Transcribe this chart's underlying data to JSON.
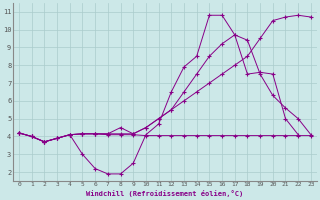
{
  "xlabel": "Windchill (Refroidissement éolien,°C)",
  "bg_color": "#cce8e8",
  "grid_color": "#aacccc",
  "line_color": "#880088",
  "xlim": [
    -0.5,
    23.5
  ],
  "ylim": [
    1.5,
    11.5
  ],
  "xticks": [
    0,
    1,
    2,
    3,
    4,
    5,
    6,
    7,
    8,
    9,
    10,
    11,
    12,
    13,
    14,
    15,
    16,
    17,
    18,
    19,
    20,
    21,
    22,
    23
  ],
  "yticks": [
    2,
    3,
    4,
    5,
    6,
    7,
    8,
    9,
    10,
    11
  ],
  "line1_x": [
    0,
    1,
    2,
    3,
    4,
    5,
    6,
    7,
    8,
    9,
    10,
    11,
    12,
    13,
    14,
    15,
    16,
    17,
    18,
    19,
    20,
    21,
    22,
    23
  ],
  "line1_y": [
    4.2,
    4.0,
    3.7,
    3.9,
    4.1,
    4.15,
    4.15,
    4.1,
    4.1,
    4.1,
    4.05,
    4.05,
    4.05,
    4.05,
    4.05,
    4.05,
    4.05,
    4.05,
    4.05,
    4.05,
    4.05,
    4.05,
    4.05,
    4.05
  ],
  "line2_x": [
    0,
    1,
    2,
    3,
    4,
    5,
    6,
    7,
    8,
    9,
    10,
    11,
    12,
    13,
    14,
    15,
    16,
    17,
    18,
    19,
    20,
    21,
    22,
    23
  ],
  "line2_y": [
    4.2,
    4.0,
    3.7,
    3.9,
    4.1,
    3.0,
    2.2,
    1.9,
    1.9,
    2.5,
    4.1,
    4.7,
    6.5,
    7.9,
    8.5,
    10.8,
    10.8,
    9.7,
    9.4,
    7.5,
    6.3,
    5.6,
    5.0,
    4.1
  ],
  "line3_x": [
    0,
    1,
    2,
    3,
    4,
    5,
    6,
    7,
    8,
    9,
    10,
    11,
    12,
    13,
    14,
    15,
    16,
    17,
    18,
    19,
    20,
    21,
    22,
    23
  ],
  "line3_y": [
    4.2,
    4.0,
    3.7,
    3.9,
    4.1,
    4.15,
    4.15,
    4.15,
    4.15,
    4.15,
    4.5,
    5.0,
    5.5,
    6.0,
    6.5,
    7.0,
    7.5,
    8.0,
    8.5,
    9.5,
    10.5,
    10.7,
    10.8,
    10.7
  ],
  "line4_x": [
    0,
    1,
    2,
    3,
    4,
    5,
    6,
    7,
    8,
    9,
    10,
    11,
    12,
    13,
    14,
    15,
    16,
    17,
    18,
    19,
    20,
    21,
    22
  ],
  "line4_y": [
    4.2,
    4.0,
    3.7,
    3.9,
    4.1,
    4.15,
    4.15,
    4.15,
    4.5,
    4.15,
    4.5,
    5.0,
    5.5,
    6.5,
    7.5,
    8.5,
    9.2,
    9.7,
    7.5,
    7.6,
    7.5,
    5.0,
    4.1
  ]
}
